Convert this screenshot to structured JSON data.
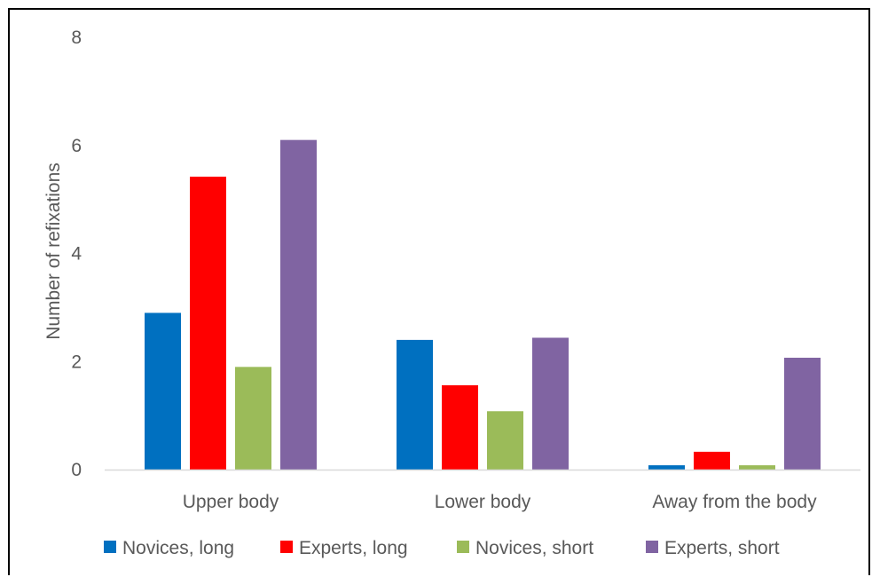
{
  "chart_data": {
    "type": "bar",
    "title": "",
    "xlabel": "",
    "ylabel": "Number of refixations",
    "ylim": [
      0,
      8
    ],
    "yticks": [
      "0",
      "2",
      "4",
      "6",
      "8"
    ],
    "grid": false,
    "legend": "bottom",
    "categories": [
      "Upper body",
      "Lower body",
      "Away from the body"
    ],
    "series": [
      {
        "name": "Novices, long",
        "color": "#0070c0",
        "values": [
          2.9,
          2.4,
          0.08
        ]
      },
      {
        "name": "Experts, long",
        "color": "#ff0000",
        "values": [
          5.42,
          1.56,
          0.33
        ]
      },
      {
        "name": "Novices, short",
        "color": "#9bbb59",
        "values": [
          1.9,
          1.08,
          0.08
        ]
      },
      {
        "name": "Experts, short",
        "color": "#8064a2",
        "values": [
          6.1,
          2.44,
          2.07
        ]
      }
    ]
  }
}
